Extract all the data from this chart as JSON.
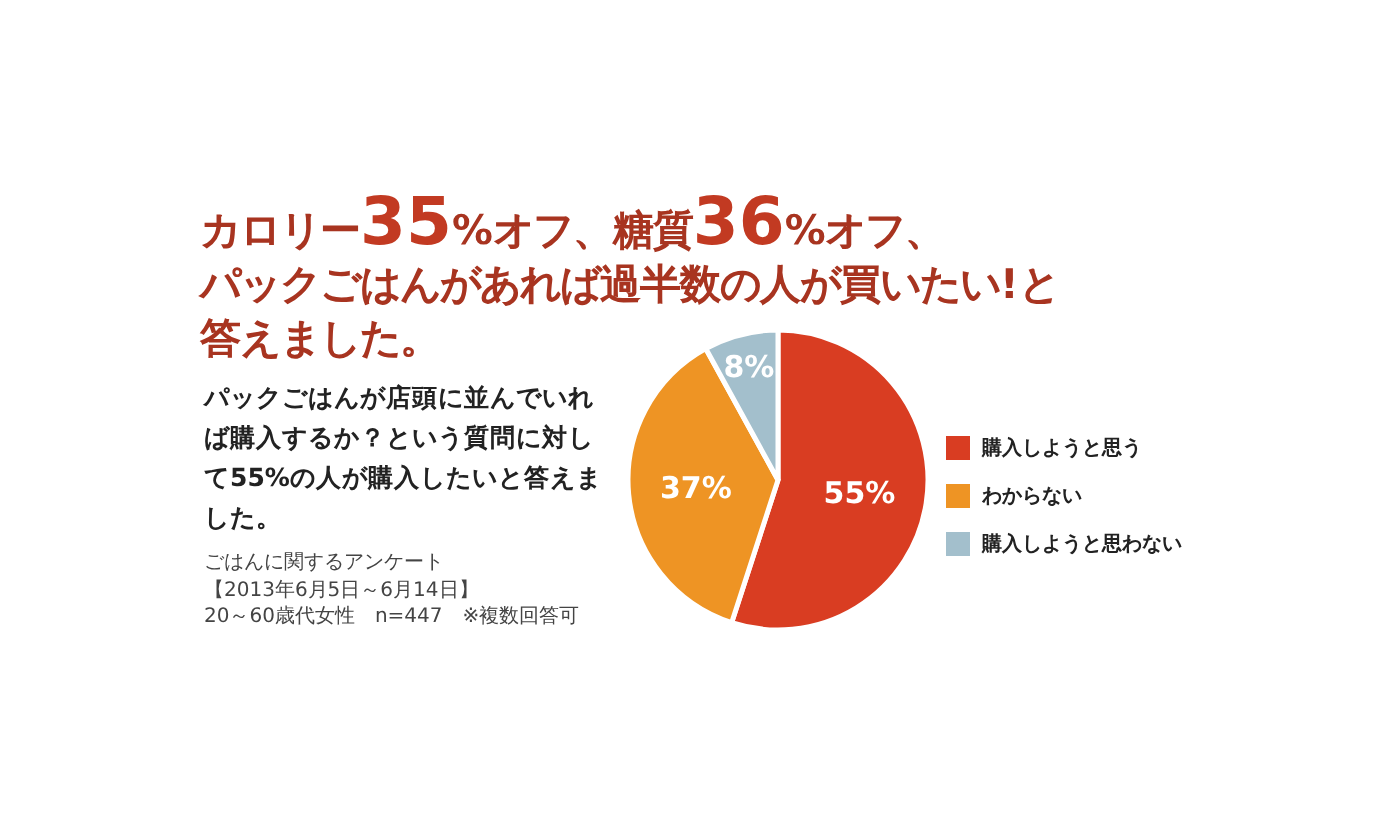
{
  "chart_data": {
    "type": "pie",
    "title": "カロリー35%オフ、糖質36%オフ、パックごはんがあれば過半数の人が買いたい!と答えました。",
    "subtitle": "パックごはんが店頭に並んでいれば購入するか？という質問に対して55%の人が購入したいと答えました。",
    "annotations": [
      "ごはんに関するアンケート",
      "【2013年6月5日～6月14日】",
      "20～60歳代女性　n=447　※複数回答可"
    ],
    "categories": [
      "購入しようと思う",
      "わからない",
      "購入しようと思わない"
    ],
    "values": [
      55,
      37,
      8
    ],
    "colors": [
      "#d93d22",
      "#ee9424",
      "#a3bfcc"
    ],
    "value_labels": [
      "55%",
      "37%",
      "8%"
    ],
    "legend": "right"
  }
}
